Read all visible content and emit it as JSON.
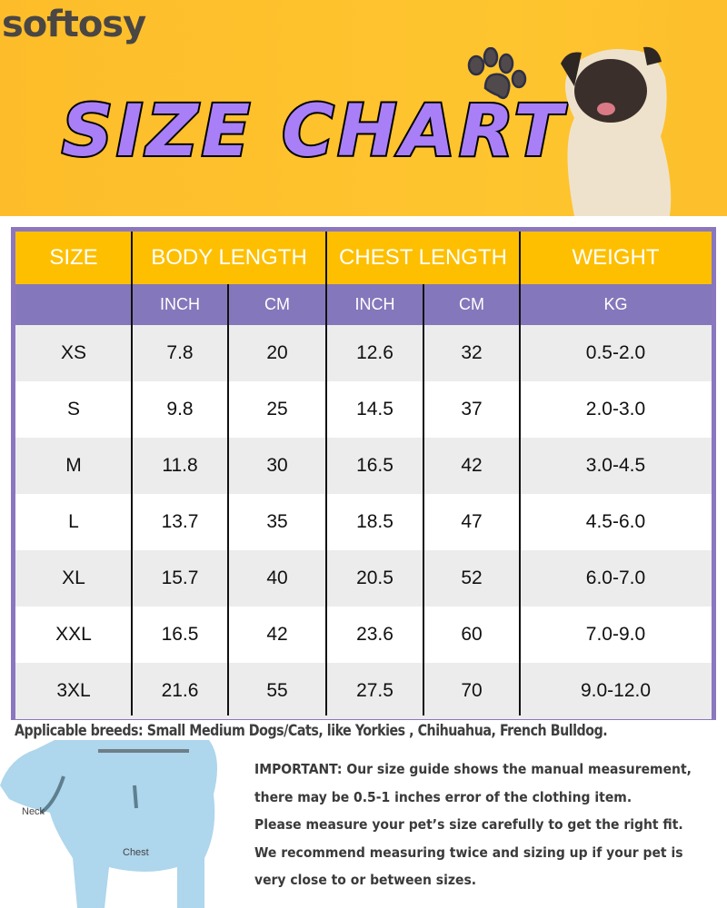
{
  "brand": "softosy",
  "title": "SIZE CHART",
  "colors": {
    "banner": "#fec22e",
    "title_fill": "#a97ff7",
    "header_yellow": "#fdbf00",
    "header_purple": "#8577bb",
    "row_alt": "#ececec"
  },
  "table": {
    "headers": [
      "SIZE",
      "BODY LENGTH",
      "CHEST LENGTH",
      "WEIGHT"
    ],
    "subheaders": [
      "",
      "INCH",
      "CM",
      "INCH",
      "CM",
      "KG"
    ],
    "rows": [
      [
        "XS",
        "7.8",
        "20",
        "12.6",
        "32",
        "0.5-2.0"
      ],
      [
        "S",
        "9.8",
        "25",
        "14.5",
        "37",
        "2.0-3.0"
      ],
      [
        "M",
        "11.8",
        "30",
        "16.5",
        "42",
        "3.0-4.5"
      ],
      [
        "L",
        "13.7",
        "35",
        "18.5",
        "47",
        "4.5-6.0"
      ],
      [
        "XL",
        "15.7",
        "40",
        "20.5",
        "52",
        "6.0-7.0"
      ],
      [
        "XXL",
        "16.5",
        "42",
        "23.6",
        "60",
        "7.0-9.0"
      ],
      [
        "3XL",
        "21.6",
        "55",
        "27.5",
        "70",
        "9.0-12.0"
      ]
    ]
  },
  "breeds": "Applicable breeds: Small Medium Dogs/Cats, like Yorkies , Chihuahua, French Bulldog.",
  "diagram": {
    "neck": "Neck",
    "chest": "Chest"
  },
  "important": [
    "IMPORTANT: Our size guide shows the manual measurement,",
    "there may be 0.5-1 inches error of the clothing item.",
    "Please measure your pet’s size carefully to get the right fit.",
    "We recommend measuring twice and sizing up if your pet is",
    "very close to or between sizes."
  ]
}
